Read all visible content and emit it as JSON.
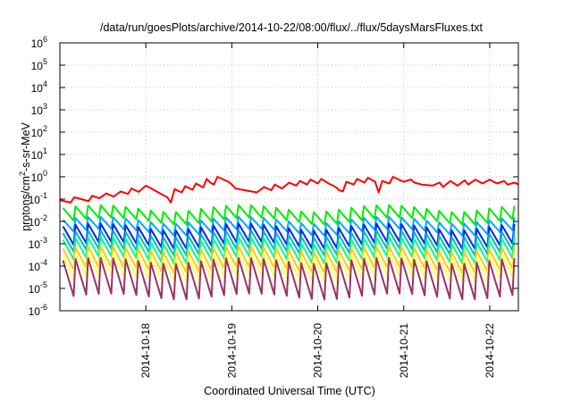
{
  "chart_data": {
    "type": "line",
    "title": "/data/run/goesPlots/archive/2014-10-22/08:00/flux/../flux/5daysMarsFluxes.txt",
    "xlabel": "Coordinated Universal Time (UTC)",
    "ylabel_parts": [
      "protons/cm",
      "2",
      "-s-sr-MeV"
    ],
    "yscale": "log",
    "ylim": [
      1e-06,
      1000000.0
    ],
    "xlim": [
      "2014-10-17T00:00",
      "2014-10-22T08:00"
    ],
    "grid": true,
    "y_ticks": [
      {
        "value": 1e-06,
        "base": "10",
        "exp": "-6"
      },
      {
        "value": 1e-05,
        "base": "10",
        "exp": "-5"
      },
      {
        "value": 0.0001,
        "base": "10",
        "exp": "-4"
      },
      {
        "value": 0.001,
        "base": "10",
        "exp": "-3"
      },
      {
        "value": 0.01,
        "base": "10",
        "exp": "-2"
      },
      {
        "value": 0.1,
        "base": "10",
        "exp": "-1"
      },
      {
        "value": 1,
        "base": "10",
        "exp": "0"
      },
      {
        "value": 10.0,
        "base": "10",
        "exp": "1"
      },
      {
        "value": 100.0,
        "base": "10",
        "exp": "2"
      },
      {
        "value": 1000.0,
        "base": "10",
        "exp": "3"
      },
      {
        "value": 10000.0,
        "base": "10",
        "exp": "4"
      },
      {
        "value": 100000.0,
        "base": "10",
        "exp": "5"
      },
      {
        "value": 1000000.0,
        "base": "10",
        "exp": "6"
      }
    ],
    "x_ticks": [
      "2014-10-18",
      "2014-10-19",
      "2014-10-20",
      "2014-10-21",
      "2014-10-22"
    ],
    "series": [
      {
        "color": "#ff0000",
        "values": [
          [
            "2014-10-17T00:00",
            0.09
          ],
          [
            "2014-10-17T03:00",
            0.07
          ],
          [
            "2014-10-17T04:00",
            0.12
          ],
          [
            "2014-10-17T06:00",
            0.1
          ],
          [
            "2014-10-17T08:00",
            0.08
          ],
          [
            "2014-10-17T09:00",
            0.14
          ],
          [
            "2014-10-17T11:00",
            0.11
          ],
          [
            "2014-10-17T13:00",
            0.18
          ],
          [
            "2014-10-17T15:00",
            0.13
          ],
          [
            "2014-10-17T17:00",
            0.22
          ],
          [
            "2014-10-17T19:00",
            0.17
          ],
          [
            "2014-10-17T20:00",
            0.3
          ],
          [
            "2014-10-17T22:00",
            0.21
          ],
          [
            "2014-10-18T00:00",
            0.4
          ],
          [
            "2014-10-18T06:00",
            0.12
          ],
          [
            "2014-10-18T07:00",
            0.07
          ],
          [
            "2014-10-18T08:00",
            0.28
          ],
          [
            "2014-10-18T10:00",
            0.2
          ],
          [
            "2014-10-18T11:00",
            0.38
          ],
          [
            "2014-10-18T13:00",
            0.26
          ],
          [
            "2014-10-18T14:00",
            0.5
          ],
          [
            "2014-10-18T16:00",
            0.33
          ],
          [
            "2014-10-18T17:00",
            0.8
          ],
          [
            "2014-10-18T18:00",
            0.55
          ],
          [
            "2014-10-18T19:00",
            0.45
          ],
          [
            "2014-10-18T20:00",
            1.0
          ],
          [
            "2014-10-18T23:00",
            0.6
          ],
          [
            "2014-10-19T00:00",
            0.45
          ],
          [
            "2014-10-19T01:00",
            0.3
          ],
          [
            "2014-10-19T07:00",
            0.2
          ],
          [
            "2014-10-19T09:00",
            0.35
          ],
          [
            "2014-10-19T11:00",
            0.25
          ],
          [
            "2014-10-19T12:00",
            0.45
          ],
          [
            "2014-10-19T14:00",
            0.3
          ],
          [
            "2014-10-19T16:00",
            0.55
          ],
          [
            "2014-10-19T18:00",
            0.4
          ],
          [
            "2014-10-19T19:00",
            0.65
          ],
          [
            "2014-10-19T21:00",
            0.45
          ],
          [
            "2014-10-19T22:00",
            0.75
          ],
          [
            "2014-10-20T00:00",
            0.5
          ],
          [
            "2014-10-20T01:00",
            0.8
          ],
          [
            "2014-10-20T03:00",
            0.5
          ],
          [
            "2014-10-20T05:00",
            0.35
          ],
          [
            "2014-10-20T06:00",
            0.25
          ],
          [
            "2014-10-20T07:00",
            0.22
          ],
          [
            "2014-10-20T08:00",
            0.6
          ],
          [
            "2014-10-20T10:00",
            0.45
          ],
          [
            "2014-10-20T11:00",
            0.8
          ],
          [
            "2014-10-20T13:00",
            0.55
          ],
          [
            "2014-10-20T14:00",
            0.9
          ],
          [
            "2014-10-20T16:00",
            0.6
          ],
          [
            "2014-10-20T17:00",
            0.2
          ],
          [
            "2014-10-20T18:00",
            0.65
          ],
          [
            "2014-10-20T20:00",
            0.5
          ],
          [
            "2014-10-20T21:00",
            1.0
          ],
          [
            "2014-10-20T23:00",
            0.7
          ],
          [
            "2014-10-21T00:00",
            0.6
          ],
          [
            "2014-10-21T02:00",
            0.75
          ],
          [
            "2014-10-21T03:00",
            0.55
          ],
          [
            "2014-10-21T05:00",
            0.45
          ],
          [
            "2014-10-21T08:00",
            0.4
          ],
          [
            "2014-10-21T10:00",
            0.55
          ],
          [
            "2014-10-21T11:00",
            0.35
          ],
          [
            "2014-10-21T13:00",
            0.65
          ],
          [
            "2014-10-21T15:00",
            0.4
          ],
          [
            "2014-10-21T17:00",
            0.7
          ],
          [
            "2014-10-21T18:00",
            0.45
          ],
          [
            "2014-10-21T20:00",
            0.75
          ],
          [
            "2014-10-21T22:00",
            0.5
          ],
          [
            "2014-10-22T00:00",
            0.75
          ],
          [
            "2014-10-22T02:00",
            0.5
          ],
          [
            "2014-10-22T04:00",
            0.65
          ],
          [
            "2014-10-22T05:00",
            0.45
          ],
          [
            "2014-10-22T07:00",
            0.55
          ],
          [
            "2014-10-22T08:00",
            0.45
          ]
        ]
      },
      {
        "color": "#00ee00",
        "cycle_hours": 3.5,
        "peak": 0.04,
        "trough": 0.011,
        "modulation": 0.35
      },
      {
        "color": "#00aaff",
        "cycle_hours": 3.5,
        "peak": 0.012,
        "trough": 0.0035,
        "modulation": 0.35
      },
      {
        "color": "#0022ff",
        "cycle_hours": 3.5,
        "peak": 0.006,
        "trough": 0.0009,
        "modulation": 0.35
      },
      {
        "color": "#00bbbb",
        "cycle_hours": 3.5,
        "peak": 0.003,
        "trough": 0.00045,
        "modulation": 0.35
      },
      {
        "color": "#00ff88",
        "cycle_hours": 3.5,
        "peak": 0.0015,
        "trough": 0.0002,
        "modulation": 0.35
      },
      {
        "color": "#ffcc00",
        "cycle_hours": 3.5,
        "peak": 0.0006,
        "trough": 7e-05,
        "modulation": 0.3
      },
      {
        "color": "#ffff66",
        "cycle_hours": 3.5,
        "peak": 0.0003,
        "trough": 3e-05,
        "modulation": 0.3
      },
      {
        "color": "#993366",
        "cycle_hours": 3.5,
        "peak": 0.00018,
        "trough": 4.5e-06,
        "modulation": 0.3
      }
    ]
  }
}
